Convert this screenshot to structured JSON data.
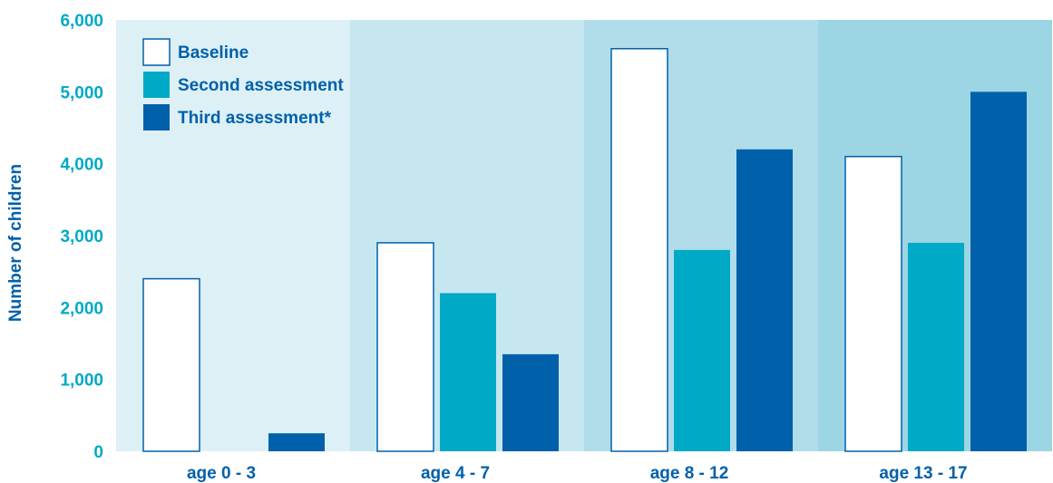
{
  "chart_data": {
    "type": "bar",
    "categories": [
      "age 0 - 3",
      "age 4 - 7",
      "age 8 - 12",
      "age 13 - 17"
    ],
    "series": [
      {
        "name": "Baseline",
        "values": [
          2400,
          2900,
          5600,
          4100
        ]
      },
      {
        "name": "Second assessment",
        "values": [
          0,
          2200,
          2800,
          2900
        ]
      },
      {
        "name": "Third assessment*",
        "values": [
          250,
          1350,
          4200,
          5000
        ]
      }
    ],
    "ylabel": "Number of children",
    "ylim": [
      0,
      6000
    ],
    "y_ticks": [
      "0",
      "1,000",
      "2,000",
      "3,000",
      "4,000",
      "5,000",
      "6,000"
    ],
    "y_tick_values": [
      0,
      1000,
      2000,
      3000,
      4000,
      5000,
      6000
    ],
    "grid": false,
    "legend_position": "top-left"
  },
  "colors": {
    "baseline_fill": "#ffffff",
    "baseline_stroke": "#0060aa",
    "second_fill": "#00a9c6",
    "third_fill": "#0060aa",
    "axis_text": "#00a9c6",
    "category_text": "#0060aa",
    "ylabel_text": "#0060aa",
    "legend_text": "#0060aa",
    "band_backgrounds": [
      "#dcf0f6",
      "#c6e7f0",
      "#b0dde9",
      "#9cd5e3"
    ]
  }
}
